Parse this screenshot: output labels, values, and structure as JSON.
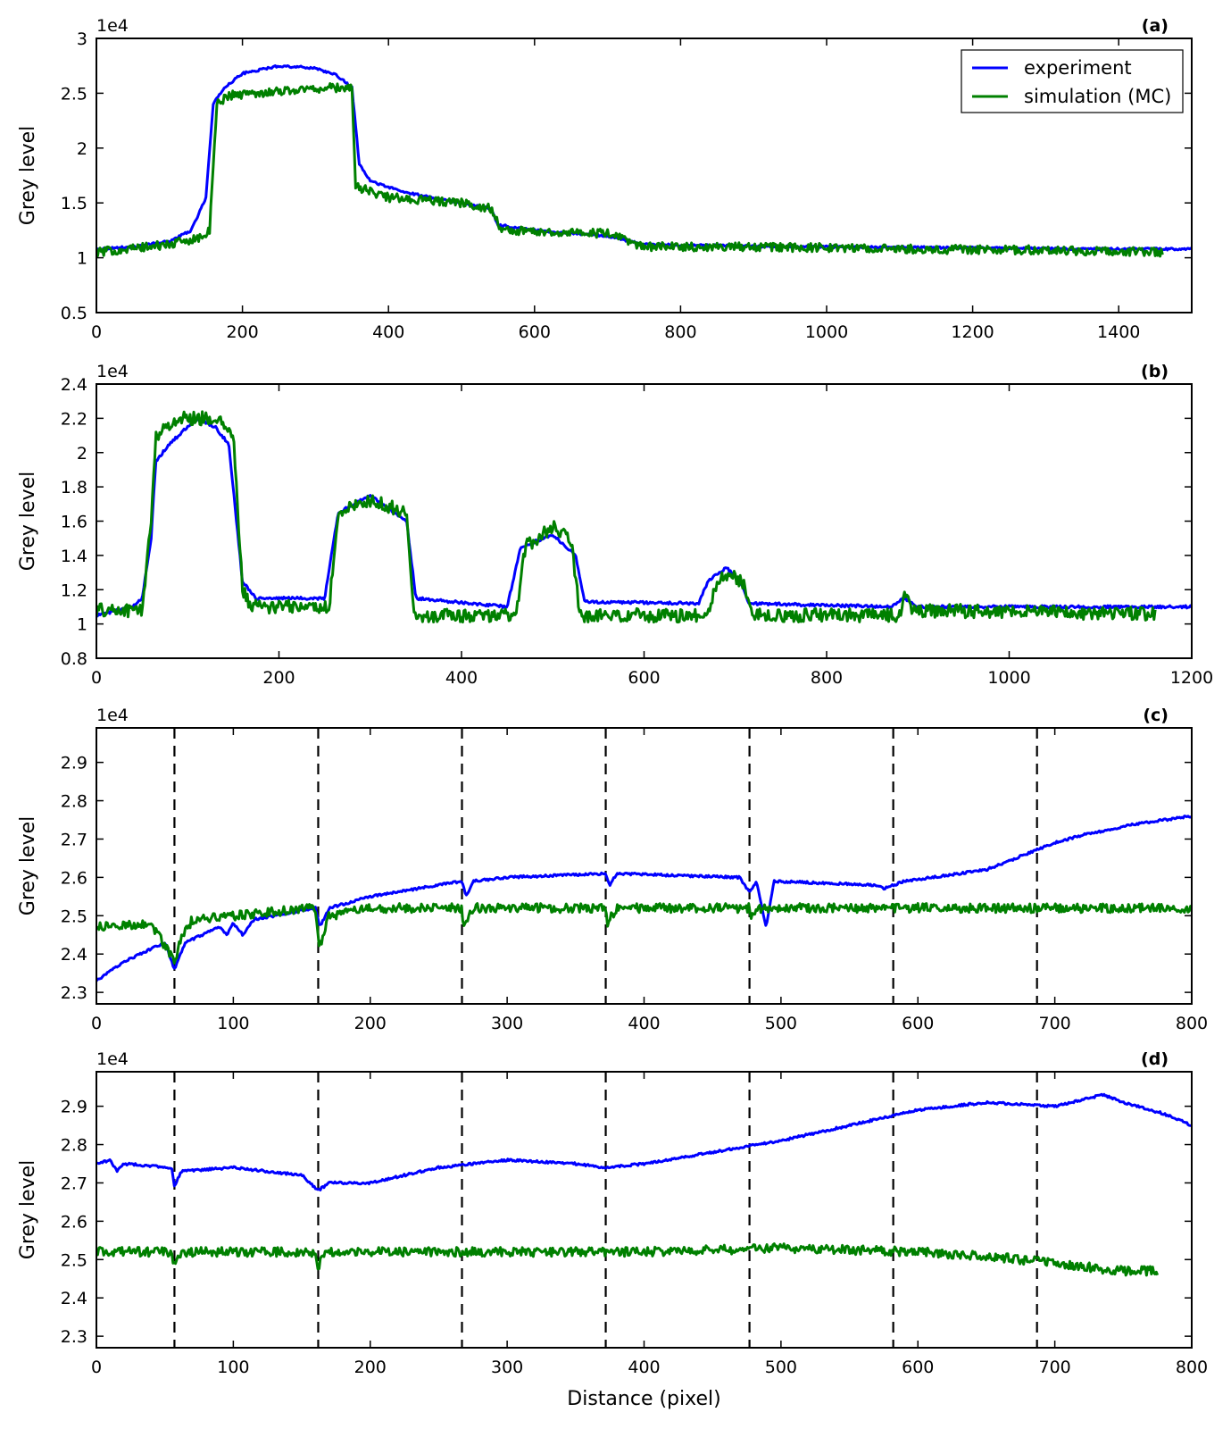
{
  "chart_data": [
    {
      "type": "line",
      "panel_label": "(a)",
      "ylabel": "Grey level",
      "xlabel": "",
      "offset_text": "1e4",
      "xlim": [
        0,
        1500
      ],
      "ylim": [
        0.5,
        3.0
      ],
      "xticks": [
        0,
        200,
        400,
        600,
        800,
        1000,
        1200,
        1400
      ],
      "yticks": [
        0.5,
        1.0,
        1.5,
        2.0,
        2.5,
        3.0
      ],
      "grid": false,
      "legend": {
        "placement": "top-right",
        "entries": [
          "experiment",
          "simulation (MC)"
        ]
      },
      "series": [
        {
          "name": "experiment",
          "color": "#0000ff",
          "noise": 0.01,
          "points": [
            [
              0,
              1.08
            ],
            [
              50,
              1.1
            ],
            [
              100,
              1.15
            ],
            [
              130,
              1.25
            ],
            [
              150,
              1.55
            ],
            [
              160,
              2.4
            ],
            [
              175,
              2.55
            ],
            [
              200,
              2.68
            ],
            [
              250,
              2.75
            ],
            [
              300,
              2.73
            ],
            [
              330,
              2.66
            ],
            [
              350,
              2.55
            ],
            [
              360,
              1.85
            ],
            [
              375,
              1.7
            ],
            [
              420,
              1.6
            ],
            [
              500,
              1.5
            ],
            [
              540,
              1.45
            ],
            [
              550,
              1.3
            ],
            [
              600,
              1.25
            ],
            [
              700,
              1.2
            ],
            [
              750,
              1.12
            ],
            [
              850,
              1.11
            ],
            [
              1000,
              1.1
            ],
            [
              1200,
              1.09
            ],
            [
              1350,
              1.08
            ],
            [
              1500,
              1.08
            ]
          ]
        },
        {
          "name": "simulation (MC)",
          "color": "#008000",
          "noise": 0.04,
          "points": [
            [
              0,
              1.05
            ],
            [
              100,
              1.12
            ],
            [
              150,
              1.2
            ],
            [
              155,
              1.25
            ],
            [
              165,
              2.4
            ],
            [
              180,
              2.48
            ],
            [
              250,
              2.52
            ],
            [
              320,
              2.55
            ],
            [
              350,
              2.55
            ],
            [
              355,
              1.65
            ],
            [
              400,
              1.55
            ],
            [
              500,
              1.5
            ],
            [
              540,
              1.45
            ],
            [
              555,
              1.25
            ],
            [
              700,
              1.22
            ],
            [
              750,
              1.1
            ],
            [
              900,
              1.1
            ],
            [
              1100,
              1.08
            ],
            [
              1300,
              1.07
            ],
            [
              1460,
              1.05
            ]
          ]
        }
      ]
    },
    {
      "type": "line",
      "panel_label": "(b)",
      "ylabel": "Grey level",
      "xlabel": "",
      "offset_text": "1e4",
      "xlim": [
        0,
        1200
      ],
      "ylim": [
        0.8,
        2.4
      ],
      "xticks": [
        0,
        200,
        400,
        600,
        800,
        1000,
        1200
      ],
      "yticks": [
        0.8,
        1.0,
        1.2,
        1.4,
        1.6,
        1.8,
        2.0,
        2.2,
        2.4
      ],
      "grid": false,
      "series": [
        {
          "name": "experiment",
          "color": "#0000ff",
          "noise": 0.008,
          "points": [
            [
              0,
              1.05
            ],
            [
              40,
              1.1
            ],
            [
              50,
              1.15
            ],
            [
              60,
              1.5
            ],
            [
              65,
              1.95
            ],
            [
              80,
              2.05
            ],
            [
              110,
              2.2
            ],
            [
              130,
              2.15
            ],
            [
              145,
              2.05
            ],
            [
              160,
              1.25
            ],
            [
              175,
              1.15
            ],
            [
              250,
              1.15
            ],
            [
              265,
              1.65
            ],
            [
              300,
              1.75
            ],
            [
              340,
              1.6
            ],
            [
              350,
              1.15
            ],
            [
              450,
              1.1
            ],
            [
              465,
              1.45
            ],
            [
              500,
              1.52
            ],
            [
              525,
              1.4
            ],
            [
              535,
              1.13
            ],
            [
              660,
              1.12
            ],
            [
              670,
              1.25
            ],
            [
              690,
              1.33
            ],
            [
              705,
              1.25
            ],
            [
              715,
              1.12
            ],
            [
              870,
              1.1
            ],
            [
              885,
              1.15
            ],
            [
              900,
              1.1
            ],
            [
              1200,
              1.1
            ]
          ]
        },
        {
          "name": "simulation (MC)",
          "color": "#008000",
          "noise": 0.04,
          "points": [
            [
              0,
              1.08
            ],
            [
              50,
              1.08
            ],
            [
              60,
              1.6
            ],
            [
              65,
              2.1
            ],
            [
              90,
              2.2
            ],
            [
              130,
              2.2
            ],
            [
              150,
              2.1
            ],
            [
              160,
              1.2
            ],
            [
              170,
              1.1
            ],
            [
              255,
              1.1
            ],
            [
              265,
              1.65
            ],
            [
              300,
              1.72
            ],
            [
              340,
              1.65
            ],
            [
              348,
              1.05
            ],
            [
              460,
              1.05
            ],
            [
              470,
              1.45
            ],
            [
              500,
              1.57
            ],
            [
              520,
              1.48
            ],
            [
              530,
              1.05
            ],
            [
              670,
              1.05
            ],
            [
              680,
              1.25
            ],
            [
              695,
              1.3
            ],
            [
              710,
              1.22
            ],
            [
              720,
              1.05
            ],
            [
              880,
              1.05
            ],
            [
              885,
              1.18
            ],
            [
              895,
              1.08
            ],
            [
              1160,
              1.06
            ]
          ]
        }
      ]
    },
    {
      "type": "line",
      "panel_label": "(c)",
      "ylabel": "Grey level",
      "xlabel": "",
      "offset_text": "1e4",
      "xlim": [
        0,
        800
      ],
      "ylim": [
        2.27,
        2.99
      ],
      "xticks": [
        0,
        100,
        200,
        300,
        400,
        500,
        600,
        700,
        800
      ],
      "yticks": [
        2.3,
        2.4,
        2.5,
        2.6,
        2.7,
        2.8,
        2.9
      ],
      "grid": false,
      "vlines": [
        57,
        162,
        267,
        372,
        477,
        582,
        687
      ],
      "series": [
        {
          "name": "experiment",
          "color": "#0000ff",
          "noise": 0.003,
          "points": [
            [
              0,
              2.33
            ],
            [
              20,
              2.38
            ],
            [
              50,
              2.43
            ],
            [
              57,
              2.36
            ],
            [
              65,
              2.43
            ],
            [
              90,
              2.47
            ],
            [
              95,
              2.45
            ],
            [
              100,
              2.48
            ],
            [
              107,
              2.45
            ],
            [
              115,
              2.49
            ],
            [
              160,
              2.52
            ],
            [
              163,
              2.47
            ],
            [
              170,
              2.52
            ],
            [
              200,
              2.55
            ],
            [
              250,
              2.58
            ],
            [
              267,
              2.59
            ],
            [
              270,
              2.55
            ],
            [
              275,
              2.59
            ],
            [
              300,
              2.6
            ],
            [
              372,
              2.61
            ],
            [
              375,
              2.58
            ],
            [
              380,
              2.61
            ],
            [
              470,
              2.6
            ],
            [
              477,
              2.56
            ],
            [
              482,
              2.59
            ],
            [
              489,
              2.47
            ],
            [
              495,
              2.59
            ],
            [
              570,
              2.58
            ],
            [
              575,
              2.57
            ],
            [
              590,
              2.59
            ],
            [
              650,
              2.62
            ],
            [
              700,
              2.69
            ],
            [
              720,
              2.71
            ],
            [
              760,
              2.74
            ],
            [
              800,
              2.76
            ]
          ]
        },
        {
          "name": "simulation (MC)",
          "color": "#008000",
          "noise": 0.012,
          "points": [
            [
              0,
              2.47
            ],
            [
              40,
              2.48
            ],
            [
              57,
              2.38
            ],
            [
              62,
              2.44
            ],
            [
              70,
              2.49
            ],
            [
              100,
              2.5
            ],
            [
              160,
              2.52
            ],
            [
              163,
              2.42
            ],
            [
              170,
              2.5
            ],
            [
              200,
              2.52
            ],
            [
              267,
              2.52
            ],
            [
              268,
              2.47
            ],
            [
              275,
              2.52
            ],
            [
              372,
              2.52
            ],
            [
              373,
              2.48
            ],
            [
              380,
              2.52
            ],
            [
              477,
              2.52
            ],
            [
              478,
              2.49
            ],
            [
              485,
              2.52
            ],
            [
              600,
              2.52
            ],
            [
              700,
              2.52
            ],
            [
              800,
              2.52
            ]
          ]
        }
      ]
    },
    {
      "type": "line",
      "panel_label": "(d)",
      "ylabel": "Grey level",
      "xlabel": "Distance (pixel)",
      "offset_text": "1e4",
      "xlim": [
        0,
        800
      ],
      "ylim": [
        2.27,
        2.99
      ],
      "xticks": [
        0,
        100,
        200,
        300,
        400,
        500,
        600,
        700,
        800
      ],
      "yticks": [
        2.3,
        2.4,
        2.5,
        2.6,
        2.7,
        2.8,
        2.9
      ],
      "grid": false,
      "vlines": [
        57,
        162,
        267,
        372,
        477,
        582,
        687
      ],
      "series": [
        {
          "name": "experiment",
          "color": "#0000ff",
          "noise": 0.003,
          "points": [
            [
              0,
              2.75
            ],
            [
              10,
              2.76
            ],
            [
              15,
              2.73
            ],
            [
              20,
              2.75
            ],
            [
              55,
              2.74
            ],
            [
              57,
              2.69
            ],
            [
              62,
              2.73
            ],
            [
              100,
              2.74
            ],
            [
              150,
              2.72
            ],
            [
              162,
              2.68
            ],
            [
              170,
              2.7
            ],
            [
              200,
              2.7
            ],
            [
              250,
              2.74
            ],
            [
              300,
              2.76
            ],
            [
              350,
              2.75
            ],
            [
              372,
              2.74
            ],
            [
              400,
              2.75
            ],
            [
              450,
              2.78
            ],
            [
              500,
              2.81
            ],
            [
              550,
              2.85
            ],
            [
              600,
              2.89
            ],
            [
              650,
              2.91
            ],
            [
              700,
              2.9
            ],
            [
              735,
              2.93
            ],
            [
              750,
              2.91
            ],
            [
              780,
              2.88
            ],
            [
              800,
              2.85
            ]
          ]
        },
        {
          "name": "simulation (MC)",
          "color": "#008000",
          "noise": 0.012,
          "points": [
            [
              0,
              2.52
            ],
            [
              55,
              2.52
            ],
            [
              57,
              2.48
            ],
            [
              62,
              2.52
            ],
            [
              160,
              2.52
            ],
            [
              162,
              2.48
            ],
            [
              167,
              2.52
            ],
            [
              300,
              2.52
            ],
            [
              400,
              2.52
            ],
            [
              500,
              2.53
            ],
            [
              600,
              2.52
            ],
            [
              650,
              2.51
            ],
            [
              700,
              2.49
            ],
            [
              750,
              2.47
            ],
            [
              775,
              2.47
            ]
          ]
        }
      ]
    }
  ]
}
